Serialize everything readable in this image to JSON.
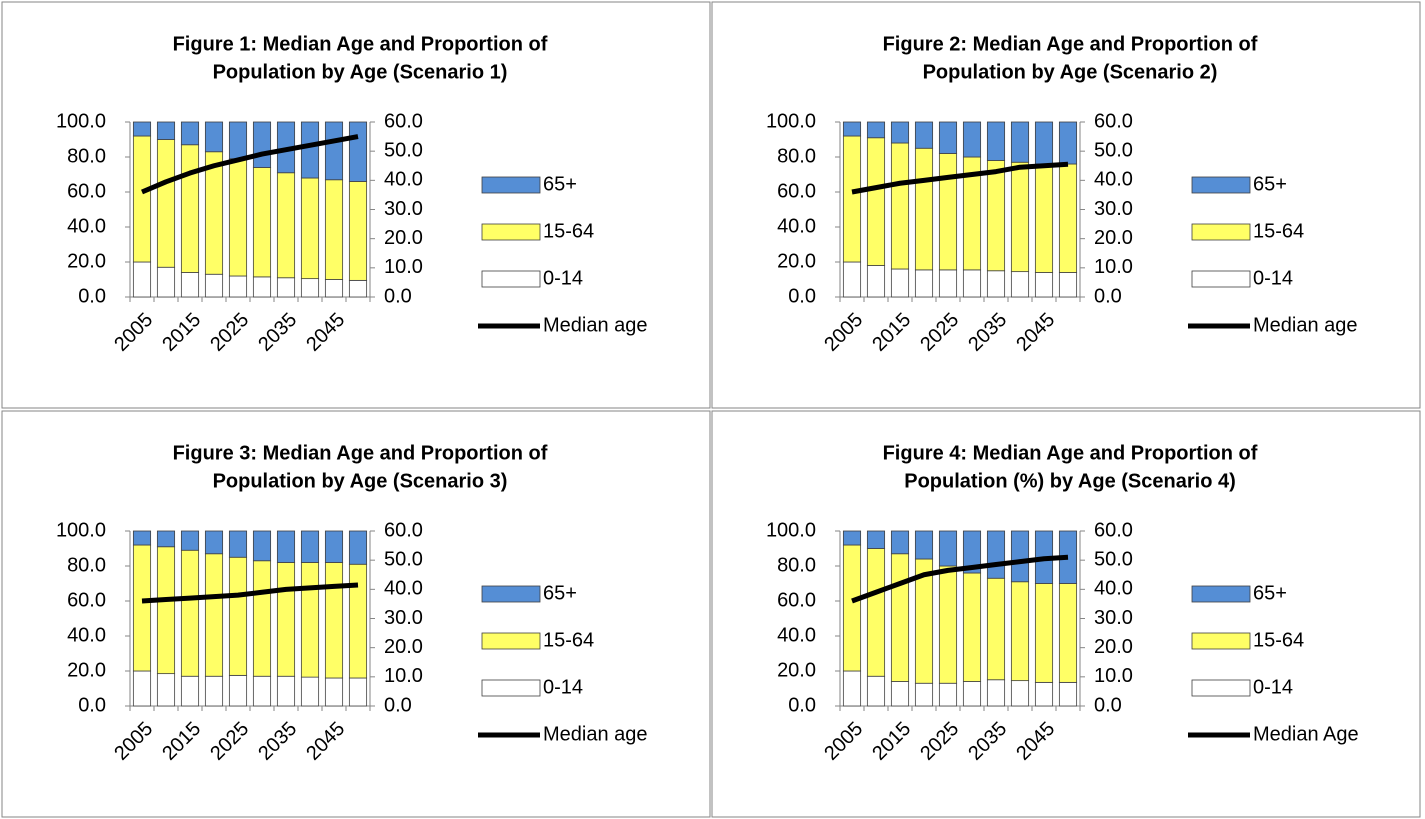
{
  "chart_data": [
    {
      "type": "bar",
      "stacked": true,
      "title": [
        "Figure 1: Median Age and Proportion of",
        "Population by Age (Scenario 1)"
      ],
      "categories": [
        "2005",
        null,
        "2015",
        null,
        "2025",
        null,
        "2035",
        null,
        "2045",
        null
      ],
      "series": [
        {
          "name": "0-14",
          "color": "#ffffff",
          "values": [
            20,
            17,
            14,
            13,
            12,
            11.5,
            11,
            10.5,
            10,
            9.5
          ]
        },
        {
          "name": "15-64",
          "color": "#ffff66",
          "values": [
            72,
            73,
            73,
            70,
            67,
            62.5,
            60,
            57.5,
            57,
            56.5
          ]
        },
        {
          "name": "65+",
          "color": "#558ed5",
          "values": [
            8,
            10,
            13,
            17,
            21,
            26,
            29,
            32,
            33,
            34
          ]
        },
        {
          "name": "Median age",
          "color": "#000000",
          "axis": "y2",
          "type": "line",
          "values": [
            36,
            39.5,
            42.5,
            45,
            47,
            49,
            50.5,
            52,
            53.5,
            55
          ]
        }
      ],
      "ylim": [
        0,
        100
      ],
      "yticks": [
        {
          "value": 0,
          "label": "0.0"
        },
        {
          "value": 20,
          "label": "20.0"
        },
        {
          "value": 40,
          "label": "40.0"
        },
        {
          "value": 60,
          "label": "60.0"
        },
        {
          "value": 80,
          "label": "80.0"
        },
        {
          "value": 100,
          "label": "100.0"
        }
      ],
      "y2lim": [
        0,
        60
      ],
      "y2ticks": [
        {
          "value": 0,
          "label": "0.0"
        },
        {
          "value": 10,
          "label": "10.0"
        },
        {
          "value": 20,
          "label": "20.0"
        },
        {
          "value": 30,
          "label": "30.0"
        },
        {
          "value": 40,
          "label": "40.0"
        },
        {
          "value": 50,
          "label": "50.0"
        },
        {
          "value": 60,
          "label": "60.0"
        }
      ],
      "legend": "right"
    },
    {
      "type": "bar",
      "stacked": true,
      "title": [
        "Figure 2: Median Age and Proportion of",
        "Population by Age (Scenario 2)"
      ],
      "categories": [
        "2005",
        null,
        "2015",
        null,
        "2025",
        null,
        "2035",
        null,
        "2045",
        null
      ],
      "series": [
        {
          "name": "0-14",
          "color": "#ffffff",
          "values": [
            20,
            18,
            16,
            15.5,
            15.5,
            15.5,
            15,
            14.5,
            14,
            14
          ]
        },
        {
          "name": "15-64",
          "color": "#ffff66",
          "values": [
            72,
            73,
            72,
            69.5,
            66.5,
            64.5,
            63,
            62.5,
            62,
            62
          ]
        },
        {
          "name": "65+",
          "color": "#558ed5",
          "values": [
            8,
            9,
            12,
            15,
            18,
            20,
            22,
            23,
            24,
            24
          ]
        },
        {
          "name": "Median age",
          "color": "#000000",
          "axis": "y2",
          "type": "line",
          "values": [
            36,
            37.5,
            39,
            40,
            41,
            42,
            43,
            44.5,
            45,
            45.5
          ]
        }
      ],
      "ylim": [
        0,
        100
      ],
      "yticks": [
        {
          "value": 0,
          "label": "0.0"
        },
        {
          "value": 20,
          "label": "20.0"
        },
        {
          "value": 40,
          "label": "40.0"
        },
        {
          "value": 60,
          "label": "60.0"
        },
        {
          "value": 80,
          "label": "80.0"
        },
        {
          "value": 100,
          "label": "100.0"
        }
      ],
      "y2lim": [
        0,
        60
      ],
      "y2ticks": [
        {
          "value": 0,
          "label": "0.0"
        },
        {
          "value": 10,
          "label": "10.0"
        },
        {
          "value": 20,
          "label": "20.0"
        },
        {
          "value": 30,
          "label": "30.0"
        },
        {
          "value": 40,
          "label": "40.0"
        },
        {
          "value": 50,
          "label": "50.0"
        },
        {
          "value": 60,
          "label": "60.0"
        }
      ],
      "legend": "right"
    },
    {
      "type": "bar",
      "stacked": true,
      "title": [
        "Figure 3: Median Age and Proportion of",
        "Population by Age (Scenario 3)"
      ],
      "categories": [
        "2005",
        null,
        "2015",
        null,
        "2025",
        null,
        "2035",
        null,
        "2045",
        null
      ],
      "series": [
        {
          "name": "0-14",
          "color": "#ffffff",
          "values": [
            20,
            18.5,
            17,
            17,
            17.5,
            17,
            17,
            16.5,
            16,
            16
          ]
        },
        {
          "name": "15-64",
          "color": "#ffff66",
          "values": [
            72,
            72.5,
            72,
            70,
            67.5,
            66,
            65,
            65.5,
            66,
            65
          ]
        },
        {
          "name": "65+",
          "color": "#558ed5",
          "values": [
            8,
            9,
            11,
            13,
            15,
            17,
            18,
            18,
            18,
            19
          ]
        },
        {
          "name": "Median age",
          "color": "#000000",
          "axis": "y2",
          "type": "line",
          "values": [
            36,
            36.5,
            37,
            37.5,
            38,
            39,
            40,
            40.5,
            41,
            41.5
          ]
        }
      ],
      "ylim": [
        0,
        100
      ],
      "yticks": [
        {
          "value": 0,
          "label": "0.0"
        },
        {
          "value": 20,
          "label": "20.0"
        },
        {
          "value": 40,
          "label": "40.0"
        },
        {
          "value": 60,
          "label": "60.0"
        },
        {
          "value": 80,
          "label": "80.0"
        },
        {
          "value": 100,
          "label": "100.0"
        }
      ],
      "y2lim": [
        0,
        60
      ],
      "y2ticks": [
        {
          "value": 0,
          "label": "0.0"
        },
        {
          "value": 10,
          "label": "10.0"
        },
        {
          "value": 20,
          "label": "20.0"
        },
        {
          "value": 30,
          "label": "30.0"
        },
        {
          "value": 40,
          "label": "40.0"
        },
        {
          "value": 50,
          "label": "50.0"
        },
        {
          "value": 60,
          "label": "60.0"
        }
      ],
      "legend": "right"
    },
    {
      "type": "bar",
      "stacked": true,
      "title": [
        "Figure 4: Median Age and Proportion of",
        "Population (%) by Age (Scenario 4)"
      ],
      "categories": [
        "2005",
        null,
        "2015",
        null,
        "2025",
        null,
        "2035",
        null,
        "2045",
        null
      ],
      "series": [
        {
          "name": "0-14",
          "color": "#ffffff",
          "values": [
            20,
            17,
            14,
            13,
            13,
            14,
            15,
            14.5,
            13.5,
            13.5
          ]
        },
        {
          "name": "15-64",
          "color": "#ffff66",
          "values": [
            72,
            73,
            73,
            71,
            67,
            62,
            58,
            56.5,
            56.5,
            56.5
          ]
        },
        {
          "name": "65+",
          "color": "#558ed5",
          "values": [
            8,
            10,
            13,
            16,
            20,
            24,
            27,
            29,
            30,
            30
          ]
        },
        {
          "name": "Median Age",
          "color": "#000000",
          "axis": "y2",
          "type": "line",
          "values": [
            36,
            39,
            42,
            45,
            46.5,
            47.5,
            48.5,
            49.5,
            50.5,
            51
          ]
        }
      ],
      "ylim": [
        0,
        100
      ],
      "yticks": [
        {
          "value": 0,
          "label": "0.0"
        },
        {
          "value": 20,
          "label": "20.0"
        },
        {
          "value": 40,
          "label": "40.0"
        },
        {
          "value": 60,
          "label": "60.0"
        },
        {
          "value": 80,
          "label": "80.0"
        },
        {
          "value": 100,
          "label": "100.0"
        }
      ],
      "y2lim": [
        0,
        60
      ],
      "y2ticks": [
        {
          "value": 0,
          "label": "0.0"
        },
        {
          "value": 10,
          "label": "10.0"
        },
        {
          "value": 20,
          "label": "20.0"
        },
        {
          "value": 30,
          "label": "30.0"
        },
        {
          "value": 40,
          "label": "40.0"
        },
        {
          "value": 50,
          "label": "50.0"
        },
        {
          "value": 60,
          "label": "60.0"
        }
      ],
      "legend": "right"
    }
  ]
}
